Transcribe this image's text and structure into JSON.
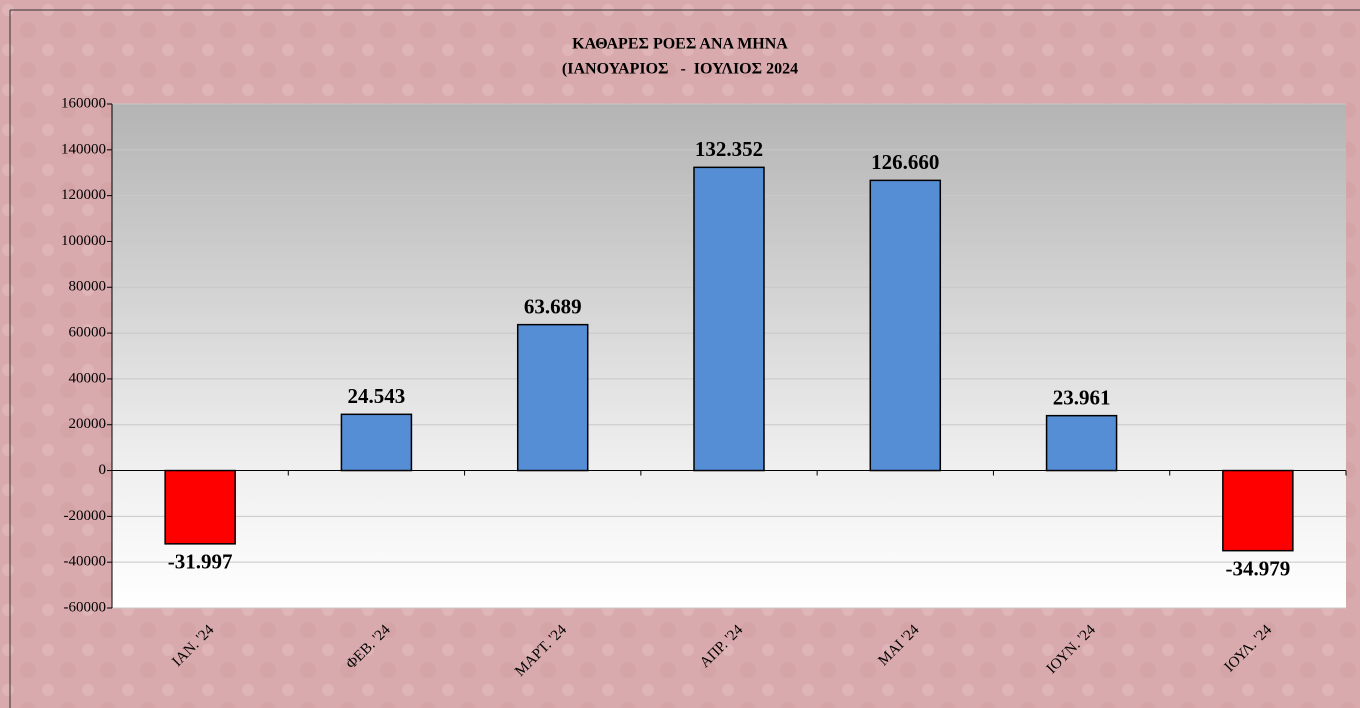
{
  "chart_data": {
    "type": "bar",
    "title": "ΚΑΘΑΡΕΣ ΡΟΕΣ ΑΝΑ ΜΗΝΑ",
    "subtitle": "(ΙΑΝΟΥΑΡΙΟΣ   -  ΙΟΥΛΙΟΣ 2024",
    "categories": [
      "ΙΑΝ. '24",
      "ΦΕΒ. '24",
      "ΜΑΡΤ. '24",
      "ΑΠΡ. '24",
      "ΜΑΙ '24",
      "ΙΟΥΝ. '24",
      "ΙΟΥΛ. '24"
    ],
    "values": [
      -31997,
      24543,
      63689,
      132352,
      126660,
      23961,
      -34979
    ],
    "value_labels": [
      "-31.997",
      "24.543",
      "63.689",
      "132.352",
      "126.660",
      "23.961",
      "-34.979"
    ],
    "colors": [
      "#ff0000",
      "#558ed5",
      "#558ed5",
      "#558ed5",
      "#558ed5",
      "#558ed5",
      "#ff0000"
    ],
    "ylim": [
      -60000,
      160000
    ],
    "yticks": [
      -60000,
      -40000,
      -20000,
      0,
      20000,
      40000,
      60000,
      80000,
      100000,
      120000,
      140000,
      160000
    ],
    "grid": true
  }
}
